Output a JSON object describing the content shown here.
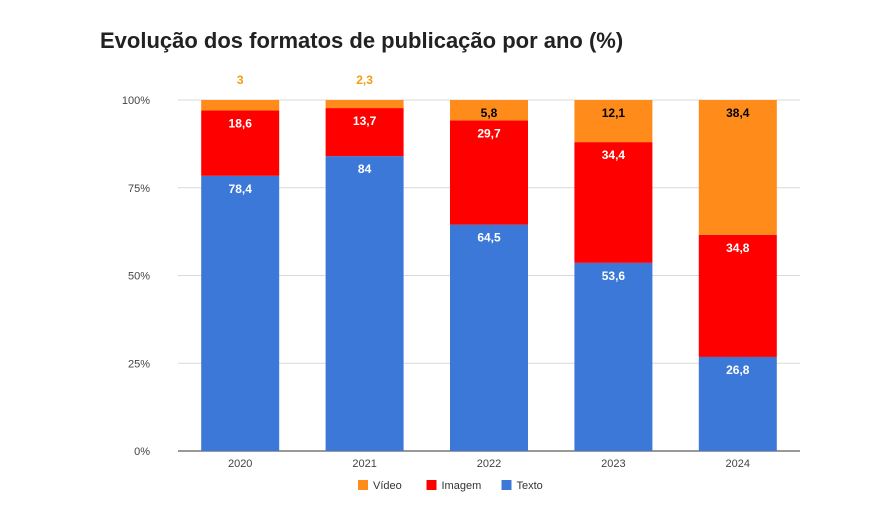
{
  "chart_data": {
    "type": "bar",
    "stacked": true,
    "title": "Evolução dos formatos de publicação por ano (%)",
    "categories": [
      "2020",
      "2021",
      "2022",
      "2023",
      "2024"
    ],
    "series": [
      {
        "name": "Texto",
        "color": "#3c78d8",
        "label_color": "#ffffff",
        "values": [
          78.4,
          84,
          64.5,
          53.6,
          26.8
        ],
        "labels": [
          "78,4",
          "84",
          "64,5",
          "53,6",
          "26,8"
        ]
      },
      {
        "name": "Imagem",
        "color": "#ff0000",
        "label_color": "#ffffff",
        "values": [
          18.6,
          13.7,
          29.7,
          34.4,
          34.8
        ],
        "labels": [
          "18,6",
          "13,7",
          "29,7",
          "34,4",
          "34,8"
        ]
      },
      {
        "name": "Vídeo",
        "color": "#ff8c1a",
        "label_color": "#000000",
        "values": [
          3,
          2.3,
          5.8,
          12.1,
          38.4
        ],
        "labels": [
          "3",
          "2,3",
          "5,8",
          "12,1",
          "38,4"
        ]
      }
    ],
    "outside_label_color": "#f39c12",
    "ylim": [
      0,
      100
    ],
    "yticks": [
      0,
      25,
      50,
      75,
      100
    ],
    "ytick_labels": [
      "0%",
      "25%",
      "50%",
      "75%",
      "100%"
    ],
    "grid": true,
    "legend_position": "bottom",
    "legend_order": [
      "Vídeo",
      "Imagem",
      "Texto"
    ]
  }
}
